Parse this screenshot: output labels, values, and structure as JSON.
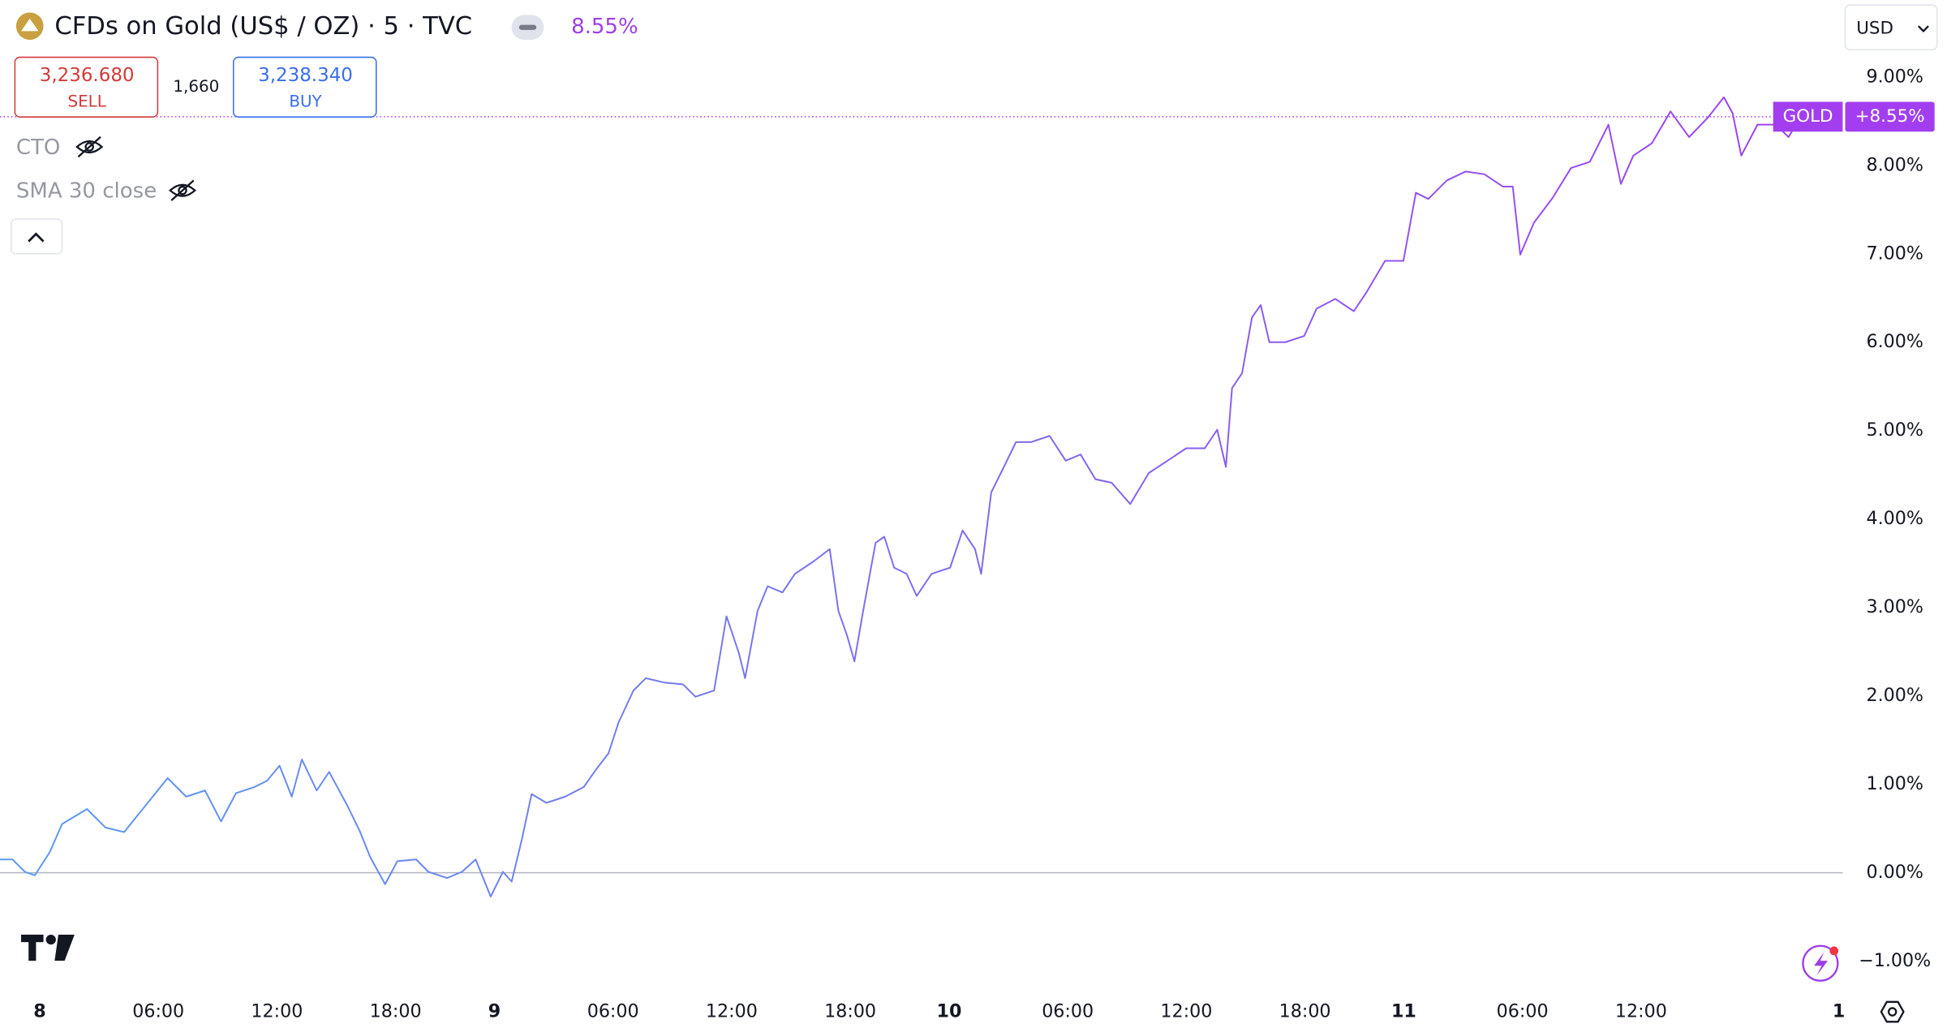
{
  "header": {
    "title": "CFDs on Gold (US$ / OZ) · 5 · TVC",
    "change": "8.55%",
    "sell_price": "3,236.680",
    "sell_label": "SELL",
    "spread": "1,660",
    "buy_price": "3,238.340",
    "buy_label": "BUY",
    "indicators": [
      "CTO",
      "SMA 30 close"
    ],
    "currency": "USD"
  },
  "chart_data": {
    "type": "line",
    "xlim": [
      -2.01,
      91.2
    ],
    "xticks": [
      {
        "value": 0,
        "label": "8"
      },
      {
        "value": 6,
        "label": "06:00"
      },
      {
        "value": 12,
        "label": "12:00"
      },
      {
        "value": 18,
        "label": "18:00"
      },
      {
        "value": 23,
        "label": "9"
      },
      {
        "value": 29,
        "label": "06:00"
      },
      {
        "value": 35,
        "label": "12:00"
      },
      {
        "value": 41,
        "label": "18:00"
      },
      {
        "value": 46,
        "label": "10"
      },
      {
        "value": 52,
        "label": "06:00"
      },
      {
        "value": 58,
        "label": "12:00"
      },
      {
        "value": 64,
        "label": "18:00"
      },
      {
        "value": 69,
        "label": "11"
      },
      {
        "value": 75,
        "label": "06:00"
      },
      {
        "value": 81,
        "label": "12:00"
      },
      {
        "value": 91,
        "label": "1"
      }
    ],
    "ylim": [
      -1.32,
      9.87
    ],
    "yticks": [
      {
        "value": -1,
        "label": "−1.00%"
      },
      {
        "value": 0,
        "label": "0.00%"
      },
      {
        "value": 1,
        "label": "1.00%"
      },
      {
        "value": 2,
        "label": "2.00%"
      },
      {
        "value": 3,
        "label": "3.00%"
      },
      {
        "value": 4,
        "label": "4.00%"
      },
      {
        "value": 5,
        "label": "5.00%"
      },
      {
        "value": 6,
        "label": "6.00%"
      },
      {
        "value": 7,
        "label": "7.00%"
      },
      {
        "value": 8,
        "label": "8.00%"
      },
      {
        "value": 9,
        "label": "9.00%"
      }
    ],
    "baseline": 0,
    "series": [
      {
        "name": "GOLD",
        "color_start": "#5b9cf0",
        "color_end": "#a23ef0",
        "last_value_label": "+8.55%",
        "x": [
          -2.01,
          -1.38,
          -0.75,
          -0.25,
          0.5,
          1.13,
          2.39,
          3.33,
          4.27,
          5.21,
          6.47,
          7.41,
          8.36,
          9.17,
          9.93,
          10.87,
          11.5,
          12.13,
          12.75,
          13.26,
          14.01,
          14.64,
          15.58,
          16.21,
          16.71,
          17.47,
          18.09,
          19.04,
          19.66,
          20.61,
          21.36,
          22.05,
          22.81,
          23.43,
          23.87,
          24.38,
          24.88,
          25.63,
          26.58,
          27.52,
          28.15,
          28.77,
          29.28,
          30.03,
          30.66,
          31.6,
          32.54,
          33.17,
          34.11,
          34.74,
          35.37,
          35.68,
          36.31,
          36.82,
          37.57,
          38.2,
          39.14,
          39.96,
          40.4,
          40.84,
          41.21,
          41.65,
          42.28,
          42.72,
          43.22,
          43.85,
          44.36,
          45.11,
          46.05,
          46.68,
          47.31,
          47.62,
          48.13,
          48.75,
          49.38,
          50.14,
          51.08,
          51.9,
          52.65,
          53.4,
          54.22,
          55.16,
          56.1,
          57.05,
          57.99,
          58.93,
          59.56,
          60.0,
          60.31,
          60.82,
          61.32,
          61.76,
          62.2,
          63.01,
          63.96,
          64.59,
          65.53,
          66.47,
          67.1,
          68.05,
          68.98,
          69.61,
          70.24,
          71.18,
          72.12,
          73.07,
          74.01,
          74.51,
          74.89,
          75.58,
          76.52,
          77.46,
          78.41,
          79.35,
          79.98,
          80.61,
          81.55,
          82.49,
          83.43,
          84.38,
          85.19,
          85.63,
          86.07,
          86.89,
          87.83,
          88.46,
          89.09
        ],
        "values": [
          0.15,
          0.15,
          0.01,
          -0.03,
          0.23,
          0.55,
          0.72,
          0.51,
          0.46,
          0.72,
          1.07,
          0.86,
          0.93,
          0.58,
          0.9,
          0.97,
          1.04,
          1.21,
          0.86,
          1.28,
          0.93,
          1.14,
          0.75,
          0.46,
          0.18,
          -0.13,
          0.13,
          0.15,
          0.01,
          -0.06,
          0.01,
          0.15,
          -0.27,
          0.01,
          -0.1,
          0.37,
          0.89,
          0.79,
          0.86,
          0.97,
          1.17,
          1.35,
          1.7,
          2.06,
          2.2,
          2.15,
          2.13,
          1.99,
          2.06,
          2.9,
          2.48,
          2.2,
          2.96,
          3.24,
          3.17,
          3.38,
          3.52,
          3.66,
          2.96,
          2.68,
          2.39,
          2.96,
          3.73,
          3.8,
          3.45,
          3.38,
          3.13,
          3.38,
          3.45,
          3.87,
          3.66,
          3.38,
          4.3,
          4.58,
          4.87,
          4.87,
          4.94,
          4.66,
          4.73,
          4.45,
          4.41,
          4.17,
          4.52,
          4.66,
          4.8,
          4.8,
          5.01,
          4.59,
          5.48,
          5.65,
          6.28,
          6.42,
          6.0,
          6.0,
          6.07,
          6.38,
          6.49,
          6.35,
          6.56,
          6.92,
          6.92,
          7.69,
          7.62,
          7.83,
          7.93,
          7.9,
          7.76,
          7.76,
          6.99,
          7.35,
          7.63,
          7.97,
          8.04,
          8.46,
          7.79,
          8.11,
          8.25,
          8.61,
          8.32,
          8.54,
          8.77,
          8.59,
          8.11,
          8.46,
          8.46,
          8.32,
          8.55
        ]
      }
    ]
  }
}
